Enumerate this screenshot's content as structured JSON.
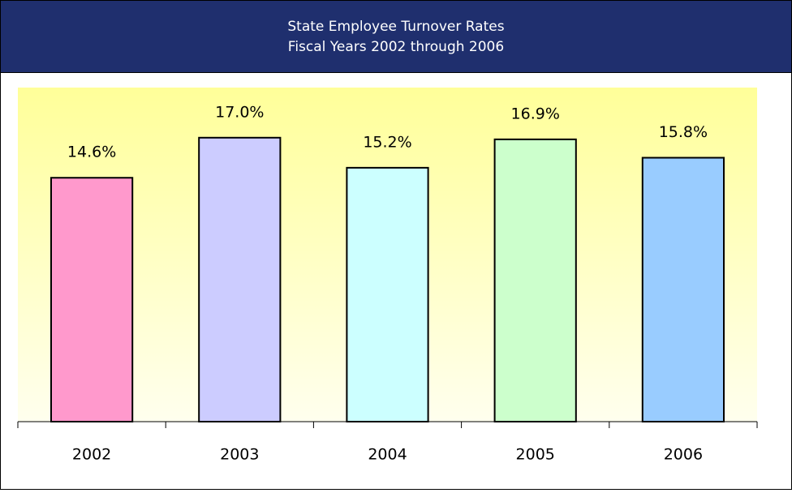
{
  "chart_data": {
    "type": "bar",
    "title": "State Employee Turnover Rates",
    "subtitle": "Fiscal Years 2002 through 2006",
    "categories": [
      "2002",
      "2003",
      "2004",
      "2005",
      "2006"
    ],
    "values": [
      14.6,
      17.0,
      15.2,
      16.9,
      15.8
    ],
    "value_labels": [
      "14.6%",
      "17.0%",
      "15.2%",
      "16.9%",
      "15.8%"
    ],
    "colors": [
      "#ff99cc",
      "#ccccff",
      "#ccffff",
      "#ccffcc",
      "#99ccff"
    ],
    "ylim": [
      0,
      20
    ]
  }
}
